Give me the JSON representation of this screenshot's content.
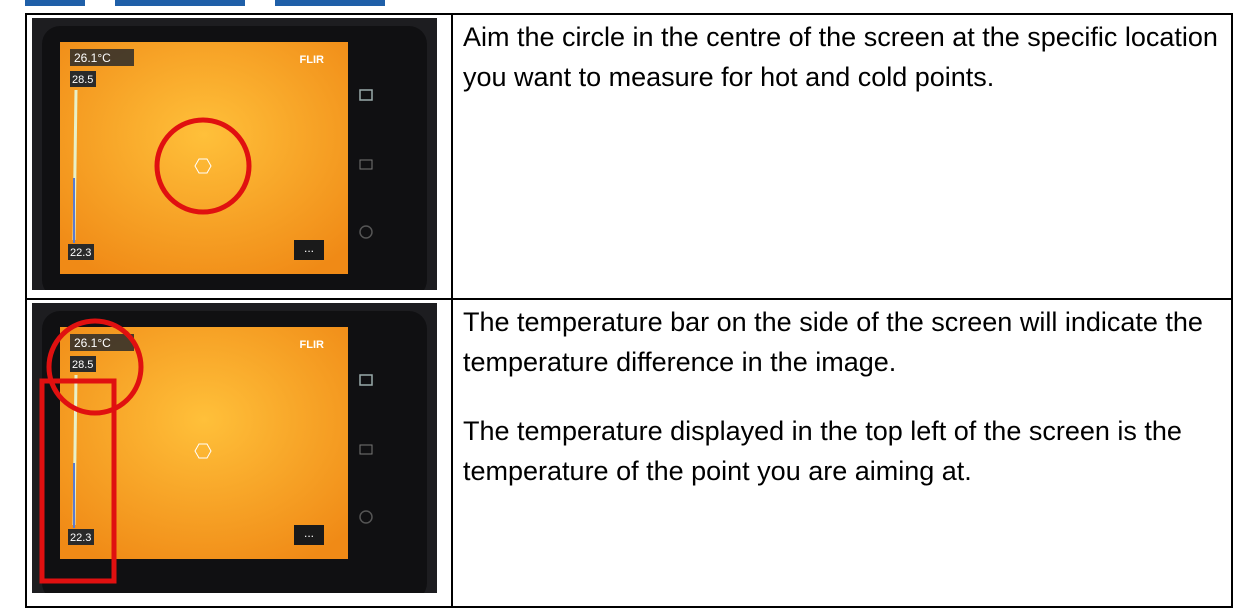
{
  "table": {
    "rows": [
      {
        "image": {
          "reading": "26.1°C",
          "brand": "FLIR",
          "scale_max": "28.5",
          "scale_min": "22.3",
          "menu": "..."
        },
        "text": [
          "Aim the circle in the centre of the screen at the specific location you want to measure for hot and cold points."
        ]
      },
      {
        "image": {
          "reading": "26.1°C",
          "brand": "FLIR",
          "scale_max": "28.5",
          "scale_min": "22.3",
          "menu": "..."
        },
        "text": [
          "The temperature bar on the side of the screen will indicate the temperature difference in the image.",
          "The temperature displayed in the top left of the screen is the temperature of the point you are aiming at."
        ]
      }
    ]
  }
}
